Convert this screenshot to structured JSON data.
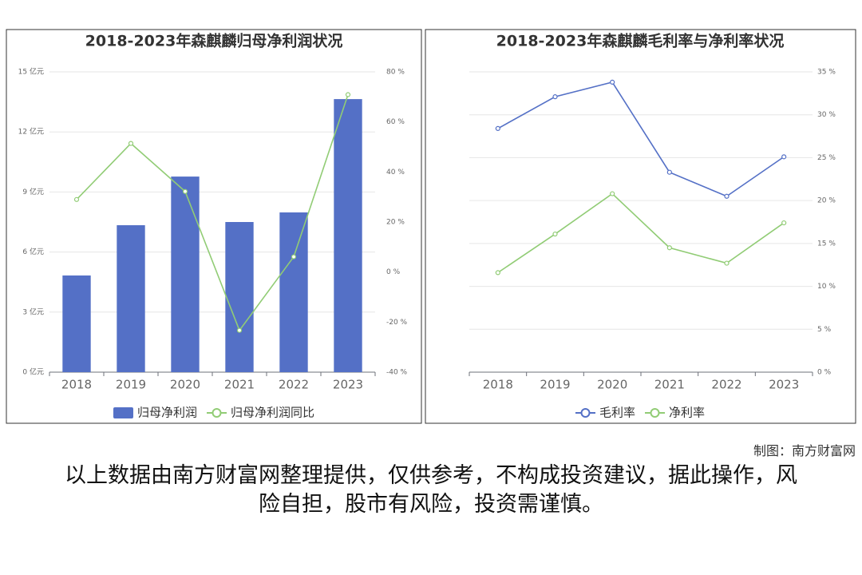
{
  "chart_data": [
    {
      "type": "bar",
      "title": "2018-2023年森麒麟归母净利润状况",
      "categories": [
        "2018",
        "2019",
        "2020",
        "2021",
        "2022",
        "2023"
      ],
      "series": [
        {
          "name": "归母净利润",
          "type": "bar",
          "color": "#5470c6",
          "values": [
            4.83,
            7.34,
            9.77,
            7.5,
            7.98,
            13.64
          ]
        },
        {
          "name": "归母净利润同比",
          "type": "line",
          "axis": "y2",
          "color": "#91cc75",
          "values": [
            29.0,
            51.4,
            32.2,
            -23.3,
            6.1,
            70.9
          ]
        }
      ],
      "ylim": [
        0,
        15
      ],
      "yticks": [
        {
          "value": 0,
          "label": "0 亿元"
        },
        {
          "value": 3,
          "label": "3 亿元"
        },
        {
          "value": 6,
          "label": "6 亿元"
        },
        {
          "value": 9,
          "label": "9 亿元"
        },
        {
          "value": 12,
          "label": "12 亿元"
        },
        {
          "value": 15,
          "label": "15 亿元"
        }
      ],
      "y2lim": [
        -40,
        80
      ],
      "y2ticks": [
        {
          "value": -40,
          "label": "-40 %"
        },
        {
          "value": -20,
          "label": "-20 %"
        },
        {
          "value": 0,
          "label": "0 %"
        },
        {
          "value": 20,
          "label": "20 %"
        },
        {
          "value": 40,
          "label": "40 %"
        },
        {
          "value": 60,
          "label": "60 %"
        },
        {
          "value": 80,
          "label": "80 %"
        }
      ],
      "grid": true,
      "legend": "bottom"
    },
    {
      "type": "line",
      "title": "2018-2023年森麒麟毛利率与净利率状况",
      "categories": [
        "2018",
        "2019",
        "2020",
        "2021",
        "2022",
        "2023"
      ],
      "series": [
        {
          "name": "毛利率",
          "type": "line",
          "color": "#5470c6",
          "values": [
            28.4,
            32.1,
            33.8,
            23.3,
            20.5,
            25.1
          ]
        },
        {
          "name": "净利率",
          "type": "line",
          "color": "#91cc75",
          "values": [
            11.6,
            16.1,
            20.8,
            14.5,
            12.7,
            17.4
          ]
        }
      ],
      "ylim": [
        0,
        35
      ],
      "yticks": [
        {
          "value": 0,
          "label": "0 %"
        },
        {
          "value": 5,
          "label": "5 %"
        },
        {
          "value": 10,
          "label": "10 %"
        },
        {
          "value": 15,
          "label": "15 %"
        },
        {
          "value": 20,
          "label": "20 %"
        },
        {
          "value": 25,
          "label": "25 %"
        },
        {
          "value": 30,
          "label": "30 %"
        },
        {
          "value": 35,
          "label": "35 %"
        }
      ],
      "y_axis_side": "right",
      "grid": true,
      "legend": "bottom"
    }
  ],
  "credit": "制图：南方财富网",
  "disclaimer": "以上数据由南方财富网整理提供，仅供参考，不构成投资建议，据此操作，风险自担，股市有风险，投资需谨慎。"
}
